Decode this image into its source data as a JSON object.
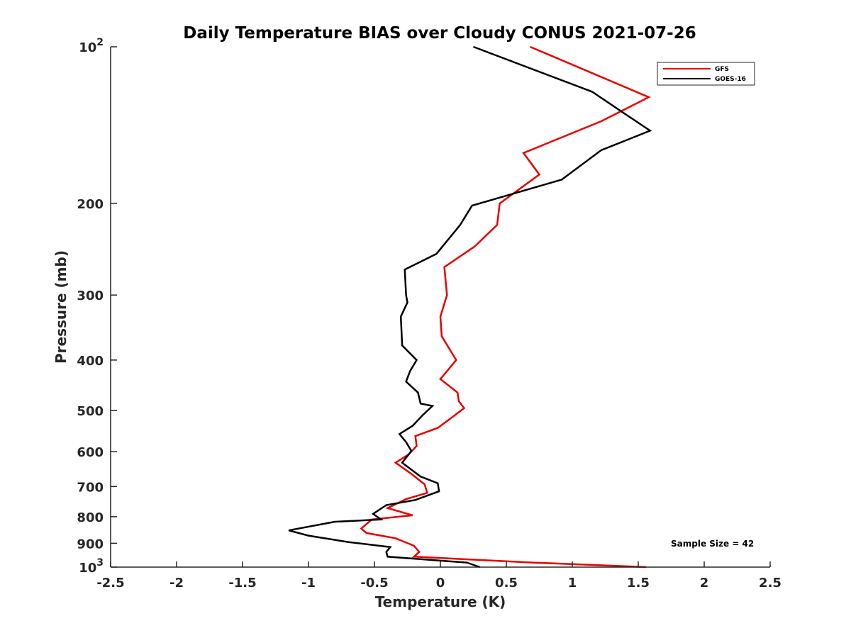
{
  "chart_data": {
    "type": "line",
    "title": "Daily Temperature BIAS over Cloudy CONUS 2021-07-26",
    "xlabel": "Temperature (K)",
    "ylabel": "Pressure (mb)",
    "xlim": [
      -2.5,
      2.5
    ],
    "ylim": [
      1000,
      100
    ],
    "y_scale": "log",
    "y_reversed": true,
    "x_ticks": [
      "-2.5",
      "-2",
      "-1.5",
      "-1",
      "-0.5",
      "0",
      "0.5",
      "1",
      "1.5",
      "2",
      "2.5"
    ],
    "y_ticks": [
      {
        "value": 100,
        "base": "10",
        "exp": "2"
      },
      {
        "value": 200,
        "label": "200"
      },
      {
        "value": 300,
        "label": "300"
      },
      {
        "value": 400,
        "label": "400"
      },
      {
        "value": 500,
        "label": "500"
      },
      {
        "value": 600,
        "label": "600"
      },
      {
        "value": 700,
        "label": "700"
      },
      {
        "value": 800,
        "label": "800"
      },
      {
        "value": 900,
        "label": "900"
      },
      {
        "value": 1000,
        "base": "10",
        "exp": "3"
      }
    ],
    "grid": false,
    "legend_position": "top-right",
    "annotation": "Sample Size = 42",
    "series": [
      {
        "name": "GFS",
        "color": "#e60000",
        "points": [
          {
            "x": 0.68,
            "p": 100
          },
          {
            "x": 1.58,
            "p": 125
          },
          {
            "x": 1.22,
            "p": 139
          },
          {
            "x": 0.63,
            "p": 160
          },
          {
            "x": 0.75,
            "p": 176
          },
          {
            "x": 0.45,
            "p": 200
          },
          {
            "x": 0.43,
            "p": 220
          },
          {
            "x": 0.26,
            "p": 242
          },
          {
            "x": 0.03,
            "p": 265
          },
          {
            "x": 0.05,
            "p": 300
          },
          {
            "x": 0.0,
            "p": 330
          },
          {
            "x": 0.01,
            "p": 360
          },
          {
            "x": 0.12,
            "p": 400
          },
          {
            "x": 0.0,
            "p": 435
          },
          {
            "x": 0.13,
            "p": 462
          },
          {
            "x": 0.14,
            "p": 480
          },
          {
            "x": 0.18,
            "p": 495
          },
          {
            "x": 0.09,
            "p": 515
          },
          {
            "x": -0.02,
            "p": 540
          },
          {
            "x": -0.19,
            "p": 560
          },
          {
            "x": -0.18,
            "p": 585
          },
          {
            "x": -0.24,
            "p": 607
          },
          {
            "x": -0.34,
            "p": 630
          },
          {
            "x": -0.22,
            "p": 662
          },
          {
            "x": -0.12,
            "p": 693
          },
          {
            "x": -0.1,
            "p": 720
          },
          {
            "x": -0.26,
            "p": 740
          },
          {
            "x": -0.4,
            "p": 770
          },
          {
            "x": -0.21,
            "p": 795
          },
          {
            "x": -0.52,
            "p": 810
          },
          {
            "x": -0.6,
            "p": 843
          },
          {
            "x": -0.56,
            "p": 860
          },
          {
            "x": -0.34,
            "p": 880
          },
          {
            "x": -0.2,
            "p": 910
          },
          {
            "x": -0.16,
            "p": 935
          },
          {
            "x": -0.2,
            "p": 955
          },
          {
            "x": 0.7,
            "p": 980
          },
          {
            "x": 1.56,
            "p": 1000
          }
        ]
      },
      {
        "name": "GOES-16",
        "color": "#000000",
        "points": [
          {
            "x": 0.25,
            "p": 100
          },
          {
            "x": 1.15,
            "p": 122
          },
          {
            "x": 1.59,
            "p": 145
          },
          {
            "x": 1.22,
            "p": 158
          },
          {
            "x": 0.92,
            "p": 180
          },
          {
            "x": 0.24,
            "p": 202
          },
          {
            "x": 0.15,
            "p": 220
          },
          {
            "x": -0.03,
            "p": 250
          },
          {
            "x": -0.27,
            "p": 268
          },
          {
            "x": -0.26,
            "p": 300
          },
          {
            "x": -0.25,
            "p": 310
          },
          {
            "x": -0.3,
            "p": 330
          },
          {
            "x": -0.29,
            "p": 375
          },
          {
            "x": -0.18,
            "p": 400
          },
          {
            "x": -0.23,
            "p": 420
          },
          {
            "x": -0.26,
            "p": 440
          },
          {
            "x": -0.17,
            "p": 462
          },
          {
            "x": -0.15,
            "p": 485
          },
          {
            "x": -0.06,
            "p": 490
          },
          {
            "x": -0.14,
            "p": 512
          },
          {
            "x": -0.21,
            "p": 535
          },
          {
            "x": -0.31,
            "p": 555
          },
          {
            "x": -0.26,
            "p": 575
          },
          {
            "x": -0.22,
            "p": 598
          },
          {
            "x": -0.29,
            "p": 630
          },
          {
            "x": -0.15,
            "p": 670
          },
          {
            "x": -0.02,
            "p": 690
          },
          {
            "x": -0.01,
            "p": 715
          },
          {
            "x": -0.19,
            "p": 743
          },
          {
            "x": -0.41,
            "p": 760
          },
          {
            "x": -0.51,
            "p": 790
          },
          {
            "x": -0.45,
            "p": 810
          },
          {
            "x": -0.8,
            "p": 818
          },
          {
            "x": -1.15,
            "p": 850
          },
          {
            "x": -1.0,
            "p": 870
          },
          {
            "x": -0.7,
            "p": 895
          },
          {
            "x": -0.38,
            "p": 915
          },
          {
            "x": -0.41,
            "p": 935
          },
          {
            "x": -0.4,
            "p": 955
          },
          {
            "x": 0.2,
            "p": 980
          },
          {
            "x": 0.3,
            "p": 1000
          }
        ]
      }
    ]
  }
}
